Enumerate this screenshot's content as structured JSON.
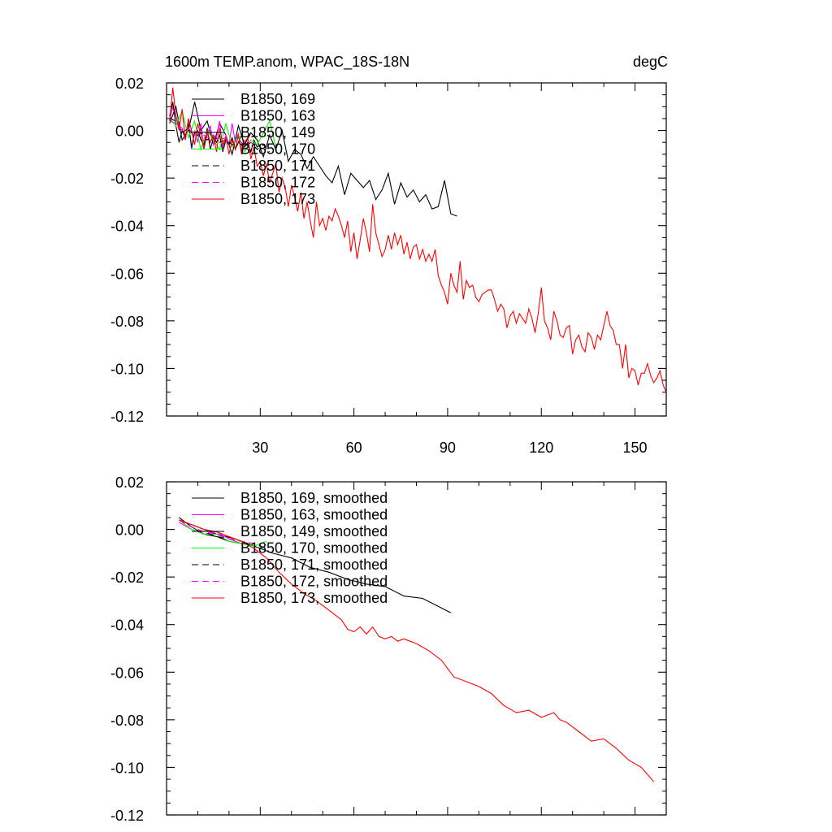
{
  "chart_data": [
    {
      "type": "line",
      "title": "1600m TEMP.anom, WPAC_18S-18N",
      "units": "degC",
      "xlim": [
        0,
        160
      ],
      "ylim": [
        -0.12,
        0.02
      ],
      "x_ticks": [
        "30",
        "60",
        "90",
        "120",
        "150"
      ],
      "y_ticks": [
        "0.02",
        "0.00",
        "-0.02",
        "-0.04",
        "-0.06",
        "-0.08",
        "-0.10",
        "-0.12"
      ],
      "legend": [
        "B1850, 169",
        "B1850, 163",
        "B1850, 149",
        "B1850, 170",
        "B1850, 171",
        "B1850, 172",
        "B1850, 173"
      ],
      "series": [
        {
          "name": "B1850, 169",
          "color": "#000000",
          "dash": "solid",
          "x": [
            1,
            3,
            5,
            7,
            9,
            11,
            13,
            15,
            17,
            19,
            21,
            23,
            25,
            27,
            29,
            31,
            33,
            35,
            37,
            39,
            41,
            43,
            45,
            47,
            49,
            51,
            53,
            55,
            57,
            59,
            61,
            63,
            65,
            67,
            69,
            71,
            73,
            75,
            77,
            79,
            81,
            83,
            85,
            87,
            89,
            91,
            93
          ],
          "y": [
            0.003,
            0.01,
            -0.004,
            0.0,
            0.012,
            0.0,
            0.004,
            -0.006,
            0.003,
            -0.002,
            -0.01,
            0.002,
            -0.006,
            -0.001,
            -0.004,
            -0.011,
            -0.002,
            -0.008,
            0.0,
            -0.013,
            -0.008,
            -0.01,
            -0.016,
            -0.011,
            -0.015,
            -0.019,
            -0.022,
            -0.015,
            -0.027,
            -0.018,
            -0.021,
            -0.024,
            -0.021,
            -0.029,
            -0.025,
            -0.018,
            -0.031,
            -0.022,
            -0.028,
            -0.025,
            -0.03,
            -0.027,
            -0.033,
            -0.032,
            -0.021,
            -0.035,
            -0.036
          ]
        },
        {
          "name": "B1850, 163",
          "color": "#ff00ff",
          "dash": "solid",
          "x": [
            1,
            2,
            3,
            4,
            5,
            6,
            7,
            8,
            9,
            10,
            11,
            12,
            13,
            14,
            15,
            16,
            17,
            18,
            19,
            20,
            21,
            22,
            23,
            24,
            25
          ],
          "y": [
            0.004,
            0.01,
            0.006,
            0.002,
            0.001,
            -0.004,
            0.004,
            -0.008,
            0.0,
            -0.005,
            0.003,
            -0.007,
            -0.002,
            0.002,
            -0.006,
            -0.003,
            0.004,
            -0.008,
            -0.002,
            -0.006,
            0.003,
            -0.005,
            -0.001,
            -0.009,
            -0.004
          ]
        },
        {
          "name": "B1850, 149",
          "color": "#000000",
          "dash": "solid",
          "x": [
            1,
            2,
            3,
            4,
            5,
            6,
            7,
            8,
            9,
            10,
            11,
            12,
            13,
            14,
            15,
            16,
            17,
            18,
            19,
            20,
            21,
            22,
            23,
            24,
            25,
            26,
            27,
            28,
            29,
            30
          ],
          "y": [
            0.006,
            0.012,
            0.002,
            -0.005,
            0.0,
            -0.003,
            0.003,
            -0.007,
            -0.001,
            0.0,
            -0.004,
            -0.006,
            0.001,
            -0.008,
            -0.003,
            -0.005,
            -0.002,
            -0.009,
            -0.004,
            -0.006,
            -0.003,
            -0.008,
            -0.005,
            -0.002,
            -0.007,
            -0.005,
            -0.009,
            -0.004,
            -0.007,
            -0.006
          ]
        },
        {
          "name": "B1850, 170",
          "color": "#00ff00",
          "dash": "solid",
          "x": [
            1,
            3,
            5,
            7,
            9,
            11,
            13,
            15,
            17,
            19,
            21,
            23,
            25,
            27,
            29,
            31,
            33,
            35
          ],
          "y": [
            0.005,
            0.002,
            0.008,
            -0.003,
            0.004,
            -0.008,
            0.0,
            -0.004,
            -0.008,
            0.003,
            -0.007,
            -0.002,
            -0.009,
            -0.004,
            -0.006,
            -0.001,
            0.004,
            -0.007
          ]
        },
        {
          "name": "B1850, 171",
          "color": "#000000",
          "dash": "dashed",
          "x": [
            1,
            3,
            5,
            7,
            9,
            11,
            13,
            15,
            17,
            19,
            21,
            23,
            25,
            27,
            29,
            31,
            33
          ],
          "y": [
            0.005,
            0.004,
            -0.001,
            0.001,
            -0.003,
            -0.001,
            -0.004,
            -0.002,
            -0.005,
            -0.004,
            -0.006,
            -0.005,
            -0.007,
            -0.005,
            -0.008,
            -0.006,
            -0.009
          ]
        },
        {
          "name": "B1850, 172",
          "color": "#ff00ff",
          "dash": "dashed",
          "x": [
            1,
            3,
            5,
            7,
            9,
            11,
            13,
            15,
            17,
            19,
            21,
            23,
            25,
            27,
            29
          ],
          "y": [
            0.004,
            0.003,
            0.0,
            0.001,
            -0.002,
            -0.001,
            -0.003,
            -0.002,
            -0.004,
            -0.003,
            -0.005,
            -0.004,
            -0.006,
            -0.005,
            -0.007
          ]
        },
        {
          "name": "B1850, 173",
          "color": "#ff0000",
          "dash": "solid",
          "x": [
            1,
            2,
            3,
            4,
            5,
            6,
            7,
            8,
            9,
            10,
            11,
            12,
            13,
            14,
            15,
            16,
            17,
            18,
            19,
            20,
            21,
            22,
            23,
            24,
            25,
            26,
            27,
            28,
            29,
            30,
            31,
            32,
            33,
            34,
            35,
            36,
            37,
            38,
            39,
            40,
            41,
            42,
            43,
            44,
            45,
            46,
            47,
            48,
            49,
            50,
            51,
            52,
            53,
            54,
            55,
            56,
            57,
            58,
            59,
            60,
            61,
            62,
            63,
            64,
            65,
            66,
            67,
            68,
            69,
            70,
            71,
            72,
            73,
            74,
            75,
            76,
            77,
            78,
            79,
            80,
            81,
            82,
            83,
            84,
            85,
            86,
            87,
            88,
            89,
            90,
            91,
            92,
            93,
            94,
            95,
            96,
            97,
            98,
            99,
            100,
            101,
            102,
            103,
            104,
            105,
            106,
            107,
            108,
            109,
            110,
            111,
            112,
            113,
            114,
            115,
            116,
            117,
            118,
            119,
            120,
            121,
            122,
            123,
            124,
            125,
            126,
            127,
            128,
            129,
            130,
            131,
            132,
            133,
            134,
            135,
            136,
            137,
            138,
            139,
            140,
            141,
            142,
            143,
            144,
            145,
            146,
            147,
            148,
            149,
            150,
            151,
            152,
            153,
            154,
            155,
            156,
            157,
            158,
            159,
            160
          ],
          "y": [
            0.004,
            0.018,
            0.006,
            0.0,
            0.009,
            -0.004,
            0.005,
            0.0,
            -0.006,
            0.003,
            -0.002,
            -0.008,
            0.0,
            -0.005,
            -0.002,
            -0.009,
            0.001,
            -0.006,
            -0.003,
            -0.01,
            -0.004,
            -0.008,
            -0.002,
            -0.01,
            -0.005,
            -0.003,
            -0.012,
            -0.007,
            -0.015,
            -0.013,
            -0.019,
            -0.014,
            -0.022,
            -0.018,
            -0.014,
            -0.026,
            -0.02,
            -0.024,
            -0.032,
            -0.023,
            -0.028,
            -0.034,
            -0.026,
            -0.037,
            -0.03,
            -0.038,
            -0.045,
            -0.03,
            -0.04,
            -0.037,
            -0.042,
            -0.036,
            -0.038,
            -0.033,
            -0.036,
            -0.04,
            -0.045,
            -0.038,
            -0.051,
            -0.043,
            -0.054,
            -0.046,
            -0.037,
            -0.043,
            -0.051,
            -0.031,
            -0.043,
            -0.048,
            -0.053,
            -0.05,
            -0.044,
            -0.05,
            -0.043,
            -0.048,
            -0.044,
            -0.052,
            -0.047,
            -0.054,
            -0.049,
            -0.048,
            -0.054,
            -0.05,
            -0.055,
            -0.052,
            -0.055,
            -0.05,
            -0.061,
            -0.065,
            -0.068,
            -0.073,
            -0.06,
            -0.065,
            -0.068,
            -0.055,
            -0.071,
            -0.063,
            -0.066,
            -0.065,
            -0.07,
            -0.072,
            -0.069,
            -0.068,
            -0.067,
            -0.067,
            -0.071,
            -0.076,
            -0.073,
            -0.075,
            -0.083,
            -0.078,
            -0.076,
            -0.081,
            -0.077,
            -0.079,
            -0.081,
            -0.075,
            -0.079,
            -0.085,
            -0.077,
            -0.066,
            -0.08,
            -0.083,
            -0.088,
            -0.076,
            -0.08,
            -0.086,
            -0.087,
            -0.083,
            -0.082,
            -0.094,
            -0.088,
            -0.086,
            -0.091,
            -0.093,
            -0.085,
            -0.087,
            -0.092,
            -0.086,
            -0.088,
            -0.082,
            -0.076,
            -0.082,
            -0.084,
            -0.09,
            -0.09,
            -0.1,
            -0.09,
            -0.104,
            -0.1,
            -0.101,
            -0.107,
            -0.102,
            -0.102,
            -0.098,
            -0.103,
            -0.106,
            -0.104,
            -0.101,
            -0.107,
            -0.11
          ]
        }
      ]
    },
    {
      "type": "line",
      "xlim": [
        0,
        160
      ],
      "ylim": [
        -0.12,
        0.02
      ],
      "y_ticks": [
        "0.02",
        "0.00",
        "-0.02",
        "-0.04",
        "-0.06",
        "-0.08",
        "-0.10",
        "-0.12"
      ],
      "legend": [
        "B1850, 169, smoothed",
        "B1850, 163, smoothed",
        "B1850, 149, smoothed",
        "B1850, 170, smoothed",
        "B1850, 171, smoothed",
        "B1850, 172, smoothed",
        "B1850, 173, smoothed"
      ],
      "series": [
        {
          "name": "B1850, 169, smoothed",
          "color": "#000000",
          "dash": "solid",
          "x": [
            4,
            10,
            16,
            22,
            28,
            34,
            40,
            46,
            52,
            58,
            64,
            70,
            76,
            82,
            88,
            91
          ],
          "y": [
            0.004,
            0.001,
            -0.002,
            -0.004,
            -0.007,
            -0.01,
            -0.012,
            -0.016,
            -0.018,
            -0.021,
            -0.023,
            -0.024,
            -0.028,
            -0.029,
            -0.033,
            -0.035
          ]
        },
        {
          "name": "B1850, 163, smoothed",
          "color": "#ff00ff",
          "dash": "solid",
          "x": [
            4,
            8,
            12,
            16,
            20,
            24
          ],
          "y": [
            0.003,
            0.0,
            -0.002,
            -0.001,
            -0.004,
            -0.006
          ]
        },
        {
          "name": "B1850, 149, smoothed",
          "color": "#000000",
          "dash": "solid",
          "x": [
            4,
            8,
            12,
            16,
            20,
            24,
            28
          ],
          "y": [
            0.005,
            0.001,
            -0.002,
            -0.003,
            -0.005,
            -0.006,
            -0.007
          ]
        },
        {
          "name": "B1850, 170, smoothed",
          "color": "#00ff00",
          "dash": "solid",
          "x": [
            4,
            8,
            12,
            16,
            20,
            24,
            28,
            32
          ],
          "y": [
            0.004,
            0.0,
            -0.002,
            -0.002,
            -0.005,
            -0.006,
            -0.007,
            -0.005
          ]
        },
        {
          "name": "B1850, 171, smoothed",
          "color": "#000000",
          "dash": "dashed",
          "x": [
            4,
            8,
            12,
            16,
            20,
            24,
            28,
            32
          ],
          "y": [
            0.004,
            0.001,
            -0.001,
            -0.003,
            -0.004,
            -0.005,
            -0.006,
            -0.008
          ]
        },
        {
          "name": "B1850, 172, smoothed",
          "color": "#ff00ff",
          "dash": "dashed",
          "x": [
            4,
            8,
            12,
            16,
            20,
            24,
            28
          ],
          "y": [
            0.004,
            0.001,
            -0.001,
            -0.002,
            -0.004,
            -0.005,
            -0.006
          ]
        },
        {
          "name": "B1850, 173, smoothed",
          "color": "#ff0000",
          "dash": "solid",
          "x": [
            4,
            8,
            12,
            16,
            20,
            24,
            28,
            32,
            36,
            40,
            44,
            48,
            52,
            56,
            58,
            60,
            62,
            64,
            66,
            68,
            70,
            72,
            74,
            76,
            78,
            80,
            84,
            88,
            92,
            96,
            100,
            104,
            108,
            112,
            116,
            120,
            124,
            126,
            128,
            132,
            136,
            140,
            144,
            148,
            152,
            156
          ],
          "y": [
            0.004,
            0.002,
            0.0,
            -0.001,
            -0.003,
            -0.005,
            -0.008,
            -0.012,
            -0.018,
            -0.023,
            -0.027,
            -0.03,
            -0.034,
            -0.038,
            -0.042,
            -0.043,
            -0.041,
            -0.044,
            -0.041,
            -0.045,
            -0.046,
            -0.045,
            -0.047,
            -0.046,
            -0.047,
            -0.048,
            -0.051,
            -0.055,
            -0.062,
            -0.064,
            -0.066,
            -0.069,
            -0.074,
            -0.077,
            -0.076,
            -0.079,
            -0.077,
            -0.08,
            -0.081,
            -0.085,
            -0.089,
            -0.088,
            -0.092,
            -0.097,
            -0.1,
            -0.106
          ]
        }
      ]
    }
  ]
}
